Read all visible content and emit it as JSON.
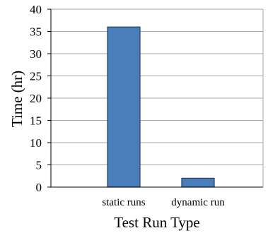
{
  "chart_data": {
    "type": "bar",
    "categories": [
      "static runs",
      "dynamic run"
    ],
    "values": [
      36,
      2
    ],
    "xlabel": "Test Run Type",
    "ylabel": "Time (hr)",
    "ylim": [
      0,
      40
    ],
    "yticks": [
      0,
      5,
      10,
      15,
      20,
      25,
      30,
      35,
      40
    ],
    "grid": true,
    "legend": "none",
    "colors": {
      "bar_fill": "#4a7ebb",
      "bar_stroke": "#1f3f66",
      "grid": "#a6a6a6",
      "axis": "#000000"
    }
  }
}
